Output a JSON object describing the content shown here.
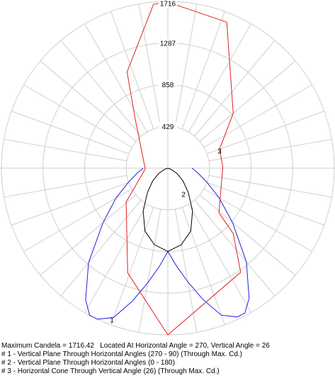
{
  "chart_data": {
    "type": "polar",
    "rlim": [
      0,
      1716
    ],
    "rticks": [
      429,
      858,
      1287,
      1716
    ],
    "thetaticks": [
      0,
      10,
      20,
      30,
      40,
      50,
      60,
      70,
      80,
      90,
      100,
      110,
      120,
      130,
      140,
      150,
      160,
      170,
      180,
      190,
      200,
      210,
      220,
      230,
      240,
      250,
      260,
      270,
      280,
      290,
      300,
      310,
      320,
      330,
      340,
      350
    ],
    "grid": true,
    "summary": "Maximum Candela = 1716.42   Located At Horizontal Angle = 270, Vertical Angle = 26",
    "series": [
      {
        "name": "# 1 - Vertical Plane Through Horizontal Angles (270 - 90) (Through Max. Cd.)",
        "label": "1",
        "color": "#1f1fe0",
        "angles": [
          -90,
          -80,
          -70,
          -60,
          -50,
          -40,
          -32,
          -28,
          -25,
          -20,
          -15,
          -10,
          -5,
          0,
          5,
          10,
          15,
          20,
          25,
          28,
          32,
          40,
          50,
          60,
          70,
          80,
          90
        ],
        "values": [
          254,
          327,
          436,
          618,
          872,
          1272,
          1600,
          1716,
          1716,
          1636,
          1418,
          1200,
          1018,
          858,
          1010,
          1190,
          1400,
          1610,
          1690,
          1690,
          1580,
          1260,
          870,
          610,
          430,
          320,
          250
        ]
      },
      {
        "name": "# 2 - Vertical Plane Through Horizontal Angles (0 - 180)",
        "label": "2",
        "color": "#000000",
        "angles": [
          -90,
          -70,
          -60,
          -50,
          -40,
          -30,
          -20,
          -10,
          0,
          10,
          20,
          30,
          40,
          50,
          60,
          70,
          90
        ],
        "values": [
          0,
          36,
          109,
          204,
          327,
          509,
          690,
          800,
          858,
          800,
          690,
          509,
          327,
          204,
          109,
          36,
          0
        ]
      },
      {
        "name": "# 3 - Horizontal Cone Through Vertical Angle (26) (Through Max. Cd.)",
        "label": "3",
        "color": "#e02020",
        "angles": [
          0,
          -21,
          -51,
          -88,
          -147,
          -157,
          -175,
          -180,
          -202,
          -230,
          -250,
          -269,
          -311,
          -315,
          -325
        ],
        "values": [
          1716,
          1155,
          553,
          233,
          625,
          1076,
          1694,
          1709,
          1621,
          880,
          567,
          567,
          698,
          953,
          1309
        ]
      }
    ]
  }
}
